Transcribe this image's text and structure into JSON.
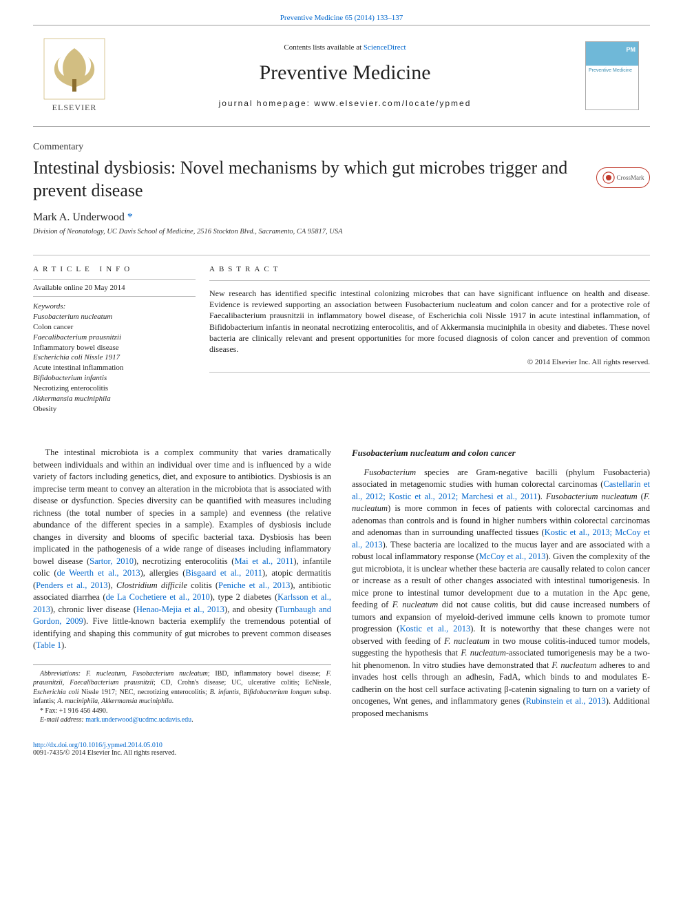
{
  "top_citation": "Preventive Medicine 65 (2014) 133–137",
  "header": {
    "contents_pre": "Contents lists available at ",
    "contents_link": "ScienceDirect",
    "journal_name": "Preventive Medicine",
    "homepage_label": "journal homepage: ",
    "homepage_url": "www.elsevier.com/locate/ypmed",
    "publisher": "ELSEVIER",
    "cover_initials": "PM",
    "cover_label": "Preventive Medicine"
  },
  "article": {
    "type": "Commentary",
    "title": "Intestinal dysbiosis: Novel mechanisms by which gut microbes trigger and prevent disease",
    "author": "Mark A. Underwood",
    "star": "*",
    "affiliation": "Division of Neonatology, UC Davis School of Medicine, 2516 Stockton Blvd., Sacramento, CA 95817, USA",
    "crossmark": "CrossMark"
  },
  "info": {
    "heading": "ARTICLE INFO",
    "available": "Available online 20 May 2014",
    "keywords_head": "Keywords:",
    "keywords": [
      {
        "t": "Fusobacterium nucleatum",
        "it": true
      },
      {
        "t": "Colon cancer",
        "it": false
      },
      {
        "t": "Faecalibacterium prausnitzii",
        "it": true
      },
      {
        "t": "Inflammatory bowel disease",
        "it": false
      },
      {
        "t": "Escherichia coli Nissle 1917",
        "it": true
      },
      {
        "t": "Acute intestinal inflammation",
        "it": false
      },
      {
        "t": "Bifidobacterium infantis",
        "it": true
      },
      {
        "t": "Necrotizing enterocolitis",
        "it": false
      },
      {
        "t": "Akkermansia muciniphila",
        "it": true
      },
      {
        "t": "Obesity",
        "it": false
      }
    ]
  },
  "abstract": {
    "heading": "ABSTRACT",
    "body": "New research has identified specific intestinal colonizing microbes that can have significant influence on health and disease. Evidence is reviewed supporting an association between Fusobacterium nucleatum and colon cancer and for a protective role of Faecalibacterium prausnitzii in inflammatory bowel disease, of Escherichia coli Nissle 1917 in acute intestinal inflammation, of Bifidobacterium infantis in neonatal necrotizing enterocolitis, and of Akkermansia muciniphila in obesity and diabetes. These novel bacteria are clinically relevant and present opportunities for more focused diagnosis of colon cancer and prevention of common diseases.",
    "copyright": "© 2014 Elsevier Inc. All rights reserved."
  },
  "body": {
    "left_para": "The intestinal microbiota is a complex community that varies dramatically between individuals and within an individual over time and is influenced by a wide variety of factors including genetics, diet, and exposure to antibiotics. Dysbiosis is an imprecise term meant to convey an alteration in the microbiota that is associated with disease or dysfunction. Species diversity can be quantified with measures including richness (the total number of species in a sample) and evenness (the relative abundance of the different species in a sample). Examples of dysbiosis include changes in diversity and blooms of specific bacterial taxa. Dysbiosis has been implicated in the pathogenesis of a wide range of diseases including inflammatory bowel disease (Sartor, 2010), necrotizing enterocolitis (Mai et al., 2011), infantile colic (de Weerth et al., 2013), allergies (Bisgaard et al., 2011), atopic dermatitis (Penders et al., 2013), Clostridium difficile colitis (Peniche et al., 2013), antibiotic associated diarrhea (de La Cochetiere et al., 2010), type 2 diabetes (Karlsson et al., 2013), chronic liver disease (Henao-Mejia et al., 2013), and obesity (Turnbaugh and Gordon, 2009). Five little-known bacteria exemplify the tremendous potential of identifying and shaping this community of gut microbes to prevent common diseases (Table 1).",
    "right_heading": "Fusobacterium nucleatum and colon cancer",
    "right_para": "Fusobacterium species are Gram-negative bacilli (phylum Fusobacteria) associated in metagenomic studies with human colorectal carcinomas (Castellarin et al., 2012; Kostic et al., 2012; Marchesi et al., 2011). Fusobacterium nucleatum (F. nucleatum) is more common in feces of patients with colorectal carcinomas and adenomas than controls and is found in higher numbers within colorectal carcinomas and adenomas than in surrounding unaffected tissues (Kostic et al., 2013; McCoy et al., 2013). These bacteria are localized to the mucus layer and are associated with a robust local inflammatory response (McCoy et al., 2013). Given the complexity of the gut microbiota, it is unclear whether these bacteria are causally related to colon cancer or increase as a result of other changes associated with intestinal tumorigenesis. In mice prone to intestinal tumor development due to a mutation in the Apc gene, feeding of F. nucleatum did not cause colitis, but did cause increased numbers of tumors and expansion of myeloid-derived immune cells known to promote tumor progression (Kostic et al., 2013). It is noteworthy that these changes were not observed with feeding of F. nucleatum in two mouse colitis-induced tumor models, suggesting the hypothesis that F. nucleatum-associated tumorigenesis may be a two-hit phenomenon. In vitro studies have demonstrated that F. nucleatum adheres to and invades host cells through an adhesin, FadA, which binds to and modulates E-cadherin on the host cell surface activating β-catenin signaling to turn on a variety of oncogenes, Wnt genes, and inflammatory genes (Rubinstein et al., 2013). Additional proposed mechanisms"
  },
  "footnotes": {
    "abbrev": "Abbreviations: F. nucleatum, Fusobacterium nucleatum; IBD, inflammatory bowel disease; F. prausnitzii, Faecalibacterium prausnitzii; CD, Crohn's disease; UC, ulcerative colitis; EcNissle, Escherichia coli Nissle 1917; NEC, necrotizing enterocolitis; B. infantis, Bifidobacterium longum subsp. infantis; A. muciniphila, Akkermansia muciniphila.",
    "fax": "* Fax: +1 916 456 4490.",
    "email_label": "E-mail address: ",
    "email": "mark.underwood@ucdmc.ucdavis.edu"
  },
  "bottom": {
    "doi": "http://dx.doi.org/10.1016/j.ypmed.2014.05.010",
    "issn": "0091-7435/© 2014 Elsevier Inc. All rights reserved."
  },
  "colors": {
    "link": "#0066cc",
    "rule": "#999999",
    "cover_top": "#6fb8d8"
  }
}
